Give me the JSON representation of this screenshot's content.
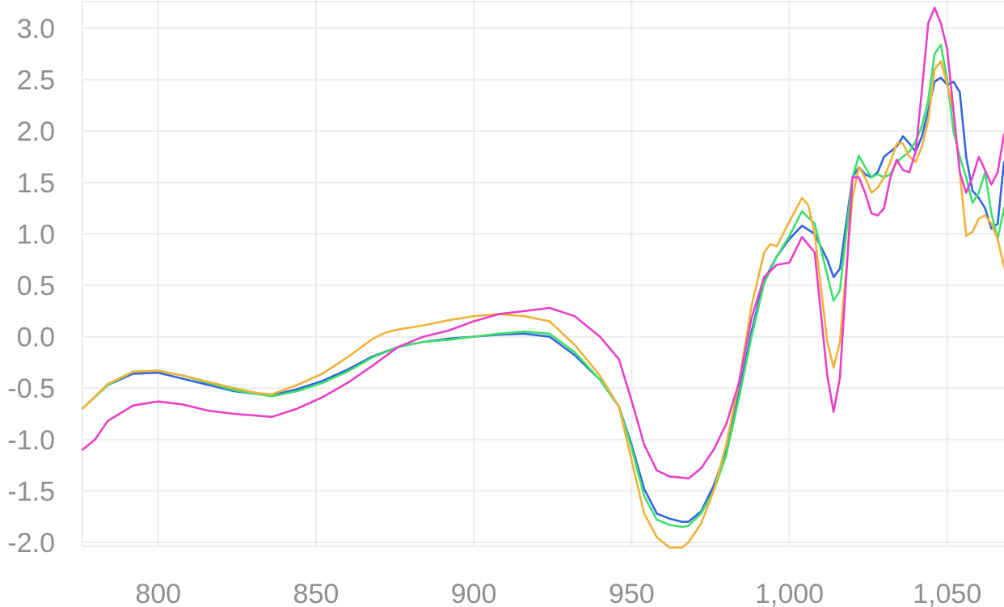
{
  "chart_data": {
    "type": "line",
    "title": "",
    "xlabel": "",
    "ylabel": "",
    "xlim": [
      776,
      1068
    ],
    "ylim": [
      -2.05,
      3.2
    ],
    "x_ticks": [
      800,
      850,
      900,
      950,
      1000,
      1050
    ],
    "x_tick_labels": [
      "800",
      "850",
      "900",
      "950",
      "1,000",
      "1,050"
    ],
    "y_ticks": [
      3.0,
      2.5,
      2.0,
      1.5,
      1.0,
      0.5,
      0.0,
      -0.5,
      -1.0,
      -1.5,
      -2.0
    ],
    "y_tick_labels": [
      "3.0",
      "2.5",
      "2.0",
      "1.5",
      "1.0",
      "0.5",
      "0.0",
      "-0.5",
      "-1.0",
      "-1.5",
      "-2.0"
    ],
    "grid": true,
    "legend": "none",
    "series": [
      {
        "color": "#3366dd",
        "x": [
          776,
          784,
          792,
          800,
          808,
          816,
          824,
          832,
          836,
          844,
          852,
          860,
          868,
          876,
          884,
          892,
          900,
          908,
          916,
          924,
          932,
          940,
          946,
          950,
          954,
          958,
          962,
          966,
          968,
          972,
          976,
          980,
          984,
          988,
          992,
          996,
          1000,
          1004,
          1008,
          1012,
          1014,
          1016,
          1020,
          1022,
          1024,
          1026,
          1028,
          1030,
          1032,
          1034,
          1036,
          1038,
          1040,
          1042,
          1044,
          1046,
          1048,
          1050,
          1052,
          1054,
          1056,
          1058,
          1060,
          1062,
          1064,
          1066,
          1068
        ],
        "y": [
          -0.7,
          -0.47,
          -0.36,
          -0.35,
          -0.41,
          -0.47,
          -0.53,
          -0.56,
          -0.57,
          -0.51,
          -0.43,
          -0.32,
          -0.19,
          -0.1,
          -0.05,
          -0.02,
          0.0,
          0.02,
          0.03,
          0.0,
          -0.18,
          -0.42,
          -0.68,
          -1.05,
          -1.48,
          -1.72,
          -1.77,
          -1.8,
          -1.8,
          -1.7,
          -1.45,
          -1.1,
          -0.55,
          0.05,
          0.55,
          0.78,
          0.95,
          1.08,
          1.0,
          0.75,
          0.58,
          0.66,
          1.55,
          1.65,
          1.58,
          1.55,
          1.6,
          1.75,
          1.8,
          1.85,
          1.95,
          1.88,
          1.8,
          1.95,
          2.2,
          2.48,
          2.52,
          2.45,
          2.48,
          2.38,
          1.75,
          1.42,
          1.35,
          1.25,
          1.05,
          1.1,
          1.7
        ]
      },
      {
        "color": "#3ee06c",
        "x": [
          776,
          784,
          792,
          800,
          808,
          816,
          824,
          832,
          836,
          844,
          852,
          860,
          868,
          876,
          884,
          892,
          900,
          908,
          916,
          924,
          932,
          940,
          946,
          950,
          954,
          958,
          962,
          966,
          968,
          972,
          976,
          980,
          984,
          988,
          992,
          996,
          1000,
          1004,
          1008,
          1012,
          1014,
          1016,
          1020,
          1022,
          1024,
          1026,
          1028,
          1030,
          1032,
          1034,
          1036,
          1038,
          1040,
          1042,
          1044,
          1046,
          1048,
          1050,
          1052,
          1054,
          1056,
          1058,
          1060,
          1062,
          1064,
          1066,
          1068
        ],
        "y": [
          -0.7,
          -0.47,
          -0.34,
          -0.33,
          -0.38,
          -0.45,
          -0.52,
          -0.56,
          -0.58,
          -0.53,
          -0.45,
          -0.34,
          -0.2,
          -0.1,
          -0.05,
          -0.03,
          0.0,
          0.03,
          0.05,
          0.03,
          -0.15,
          -0.42,
          -0.68,
          -1.08,
          -1.55,
          -1.78,
          -1.83,
          -1.85,
          -1.84,
          -1.72,
          -1.5,
          -1.15,
          -0.6,
          0.0,
          0.52,
          0.78,
          0.98,
          1.22,
          1.1,
          0.6,
          0.35,
          0.45,
          1.55,
          1.76,
          1.65,
          1.55,
          1.58,
          1.55,
          1.58,
          1.7,
          1.75,
          1.8,
          1.9,
          2.05,
          2.3,
          2.75,
          2.84,
          2.5,
          2.0,
          1.75,
          1.55,
          1.3,
          1.4,
          1.6,
          1.2,
          0.95,
          1.25
        ]
      },
      {
        "color": "#f0b23a",
        "x": [
          776,
          784,
          792,
          800,
          808,
          816,
          824,
          832,
          836,
          844,
          852,
          860,
          868,
          872,
          876,
          884,
          892,
          900,
          908,
          916,
          924,
          932,
          940,
          946,
          950,
          954,
          958,
          962,
          966,
          968,
          972,
          976,
          980,
          984,
          988,
          992,
          994,
          996,
          1000,
          1004,
          1006,
          1008,
          1012,
          1014,
          1016,
          1020,
          1022,
          1024,
          1026,
          1028,
          1030,
          1032,
          1034,
          1036,
          1038,
          1040,
          1042,
          1044,
          1046,
          1048,
          1050,
          1052,
          1054,
          1056,
          1058,
          1060,
          1062,
          1064,
          1066,
          1068
        ],
        "y": [
          -0.7,
          -0.46,
          -0.34,
          -0.33,
          -0.38,
          -0.44,
          -0.5,
          -0.55,
          -0.56,
          -0.47,
          -0.36,
          -0.2,
          -0.02,
          0.04,
          0.07,
          0.11,
          0.16,
          0.2,
          0.22,
          0.2,
          0.15,
          -0.08,
          -0.38,
          -0.68,
          -1.2,
          -1.72,
          -1.95,
          -2.05,
          -2.05,
          -2.0,
          -1.82,
          -1.5,
          -1.05,
          -0.45,
          0.3,
          0.82,
          0.9,
          0.88,
          1.12,
          1.35,
          1.28,
          1.0,
          -0.05,
          -0.3,
          -0.05,
          1.35,
          1.65,
          1.55,
          1.4,
          1.45,
          1.55,
          1.7,
          1.88,
          1.88,
          1.75,
          1.7,
          1.85,
          2.1,
          2.6,
          2.68,
          2.45,
          2.2,
          1.6,
          0.98,
          1.02,
          1.15,
          1.18,
          1.1,
          0.95,
          0.68
        ]
      },
      {
        "color": "#e840c8",
        "x": [
          776,
          780,
          784,
          792,
          800,
          808,
          816,
          824,
          832,
          836,
          844,
          852,
          860,
          868,
          876,
          884,
          892,
          900,
          908,
          916,
          924,
          932,
          940,
          946,
          950,
          954,
          958,
          962,
          966,
          968,
          972,
          976,
          980,
          984,
          988,
          992,
          996,
          1000,
          1004,
          1008,
          1012,
          1014,
          1016,
          1020,
          1022,
          1024,
          1026,
          1028,
          1030,
          1032,
          1034,
          1036,
          1038,
          1040,
          1042,
          1044,
          1046,
          1048,
          1050,
          1052,
          1054,
          1056,
          1058,
          1060,
          1062,
          1064,
          1066,
          1068
        ],
        "y": [
          -1.1,
          -1.0,
          -0.82,
          -0.67,
          -0.63,
          -0.66,
          -0.72,
          -0.75,
          -0.77,
          -0.78,
          -0.7,
          -0.59,
          -0.45,
          -0.28,
          -0.1,
          0.0,
          0.06,
          0.15,
          0.22,
          0.25,
          0.28,
          0.2,
          0.0,
          -0.22,
          -0.62,
          -1.05,
          -1.3,
          -1.36,
          -1.37,
          -1.38,
          -1.28,
          -1.1,
          -0.85,
          -0.45,
          0.18,
          0.58,
          0.7,
          0.72,
          0.97,
          0.82,
          -0.38,
          -0.73,
          -0.4,
          1.55,
          1.55,
          1.4,
          1.2,
          1.18,
          1.25,
          1.55,
          1.72,
          1.62,
          1.6,
          1.8,
          2.4,
          3.05,
          3.2,
          3.05,
          2.8,
          2.2,
          1.6,
          1.4,
          1.55,
          1.75,
          1.62,
          1.48,
          1.6,
          1.97
        ]
      }
    ]
  }
}
